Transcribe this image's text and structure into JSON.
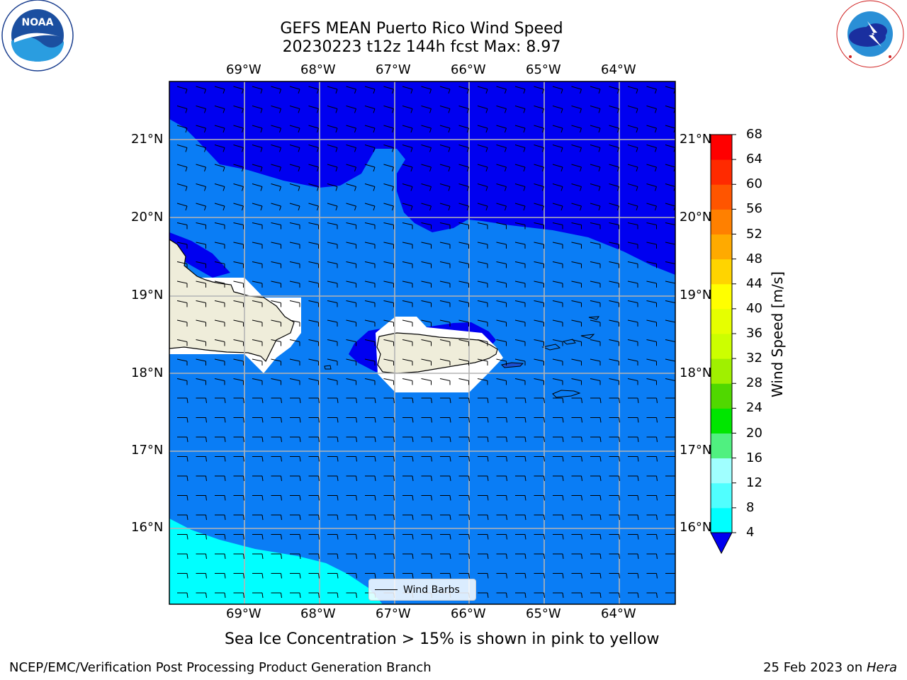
{
  "title": {
    "line1": "GEFS MEAN Puerto Rico Wind Speed",
    "line2": "20230223 t12z 144h fcst   Max: 8.97"
  },
  "logos": {
    "noaa_text": "NOAA",
    "noaa_ring": "NATIONAL OCEANIC AND ATMOSPHERIC ADMINISTRATION · U.S. DEPARTMENT OF COMMERCE",
    "nws_ring": "NATIONAL WEATHER SERVICE"
  },
  "map": {
    "lon_ticks": [
      "69°W",
      "68°W",
      "67°W",
      "66°W",
      "65°W",
      "64°W"
    ],
    "lat_ticks": [
      "21°N",
      "20°N",
      "19°N",
      "18°N",
      "17°N",
      "16°N"
    ],
    "colors": {
      "band_4_8": "#0a7df5",
      "band_lt4": "#0000f0",
      "band_8_12": "#00ffff",
      "land": "#efedda",
      "ice_mask": "#ffffff",
      "grid": "#b4b4b4"
    },
    "legend_label": "Wind Barbs"
  },
  "colorbar": {
    "label": "Wind Speed [m/s]",
    "ticks": [
      "68",
      "64",
      "60",
      "56",
      "52",
      "48",
      "44",
      "40",
      "36",
      "32",
      "28",
      "24",
      "20",
      "16",
      "12",
      "8",
      "4"
    ],
    "colors": [
      "#ff0000",
      "#ff2a00",
      "#ff5500",
      "#ff8000",
      "#ffaa00",
      "#ffd400",
      "#ffff00",
      "#e6ff00",
      "#ccff00",
      "#a0f000",
      "#50d800",
      "#00e600",
      "#50f080",
      "#a0ffff",
      "#50ffff",
      "#00ffff",
      "#0a7df5"
    ],
    "under_color": "#0000f0"
  },
  "subtitle": "Sea Ice Concentration > 15% is shown in pink to yellow",
  "footer": {
    "left": "NCEP/EMC/Verification Post Processing Product Generation Branch",
    "right_date": "25 Feb 2023 on ",
    "right_host": "Hera"
  }
}
